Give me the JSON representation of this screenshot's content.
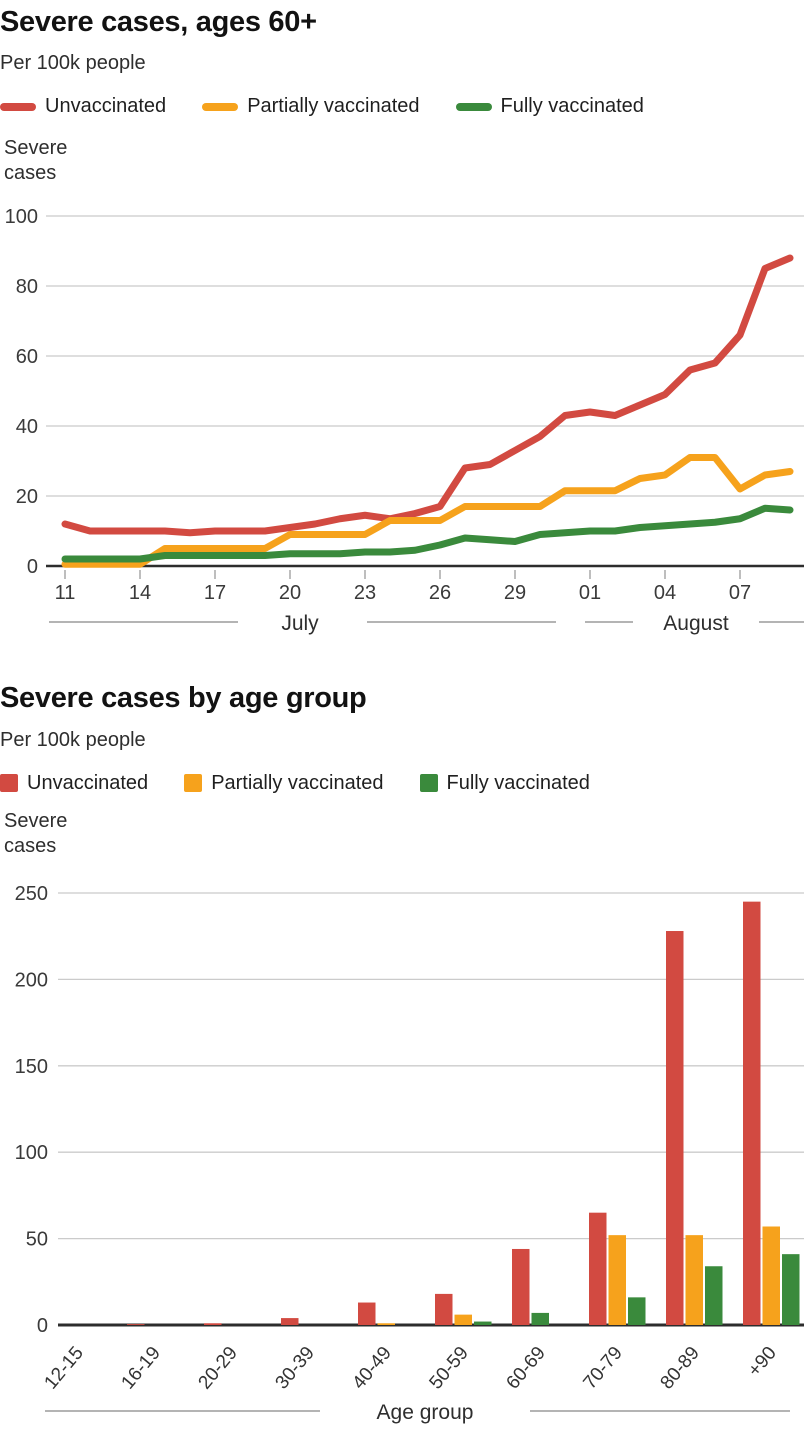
{
  "page_background": "#ffffff",
  "palette": {
    "unvaccinated": "#d24a41",
    "partially_vaccinated": "#f6a21c",
    "fully_vaccinated": "#3a8a3c",
    "baseline": "#2d2d2d",
    "gridline": "#cbcbcb",
    "tick_text": "#3a3a3a"
  },
  "chart_data": [
    {
      "type": "line",
      "title": "Severe cases, ages 60+",
      "subtitle": "Per 100k people",
      "ylabel": "Severe cases",
      "ylabel_lines": [
        "Severe",
        "cases"
      ],
      "xlabel": "",
      "ylim": [
        0,
        100
      ],
      "yticks": [
        0,
        20,
        40,
        60,
        80,
        100
      ],
      "grid": true,
      "legend_position": "top",
      "x": [
        "Jul 11",
        "Jul 12",
        "Jul 13",
        "Jul 14",
        "Jul 15",
        "Jul 16",
        "Jul 17",
        "Jul 18",
        "Jul 19",
        "Jul 20",
        "Jul 21",
        "Jul 22",
        "Jul 23",
        "Jul 24",
        "Jul 25",
        "Jul 26",
        "Jul 27",
        "Jul 28",
        "Jul 29",
        "Jul 30",
        "Jul 31",
        "Aug 01",
        "Aug 02",
        "Aug 03",
        "Aug 04",
        "Aug 05",
        "Aug 06",
        "Aug 07",
        "Aug 08",
        "Aug 09"
      ],
      "xticks": [
        {
          "index": 0,
          "label": "11"
        },
        {
          "index": 3,
          "label": "14"
        },
        {
          "index": 6,
          "label": "17"
        },
        {
          "index": 9,
          "label": "20"
        },
        {
          "index": 12,
          "label": "23"
        },
        {
          "index": 15,
          "label": "26"
        },
        {
          "index": 18,
          "label": "29"
        },
        {
          "index": 21,
          "label": "01"
        },
        {
          "index": 24,
          "label": "04"
        },
        {
          "index": 27,
          "label": "07"
        }
      ],
      "months": [
        "July",
        "August"
      ],
      "series": [
        {
          "name": "Unvaccinated",
          "color": "#d24a41",
          "values": [
            12,
            10,
            10,
            10,
            10,
            9.5,
            10,
            10,
            10,
            11,
            12,
            13.5,
            14.5,
            13.5,
            15,
            17,
            28,
            29,
            33,
            37,
            43,
            44,
            43,
            46,
            49,
            56,
            58,
            66,
            85,
            88
          ]
        },
        {
          "name": "Partially vaccinated",
          "color": "#f6a21c",
          "values": [
            0.5,
            0.5,
            0.5,
            0.5,
            5,
            5,
            5,
            5,
            5,
            9,
            9,
            9,
            9,
            13,
            13,
            13,
            17,
            17,
            17,
            17,
            21.5,
            21.5,
            21.5,
            25,
            26,
            31,
            31,
            22,
            26,
            27
          ]
        },
        {
          "name": "Fully vaccinated",
          "color": "#3a8a3c",
          "values": [
            2,
            2,
            2,
            2,
            3,
            3,
            3,
            3,
            3,
            3.5,
            3.5,
            3.5,
            4,
            4,
            4.5,
            6,
            8,
            7.5,
            7,
            9,
            9.5,
            10,
            10,
            11,
            11.5,
            12,
            12.5,
            13.5,
            16.5,
            16
          ]
        }
      ]
    },
    {
      "type": "bar",
      "title": "Severe cases by age group",
      "subtitle": "Per 100k people",
      "ylabel": "Severe cases",
      "ylabel_lines": [
        "Severe",
        "cases"
      ],
      "xlabel": "Age group",
      "ylim": [
        0,
        250
      ],
      "yticks": [
        0,
        50,
        100,
        150,
        200,
        250
      ],
      "grid": true,
      "legend_position": "top",
      "categories": [
        "12-15",
        "16-19",
        "20-29",
        "30-39",
        "40-49",
        "50-59",
        "60-69",
        "70-79",
        "80-89",
        "+90"
      ],
      "series": [
        {
          "name": "Unvaccinated",
          "color": "#d24a41",
          "values": [
            0,
            0.5,
            1,
            4,
            13,
            18,
            44,
            65,
            228,
            245
          ]
        },
        {
          "name": "Partially vaccinated",
          "color": "#f6a21c",
          "values": [
            0,
            0,
            0,
            0,
            1,
            6,
            0,
            52,
            52,
            57
          ]
        },
        {
          "name": "Fully vaccinated",
          "color": "#3a8a3c",
          "values": [
            0,
            0,
            0,
            0,
            0,
            2,
            7,
            16,
            34,
            41
          ]
        }
      ]
    }
  ]
}
